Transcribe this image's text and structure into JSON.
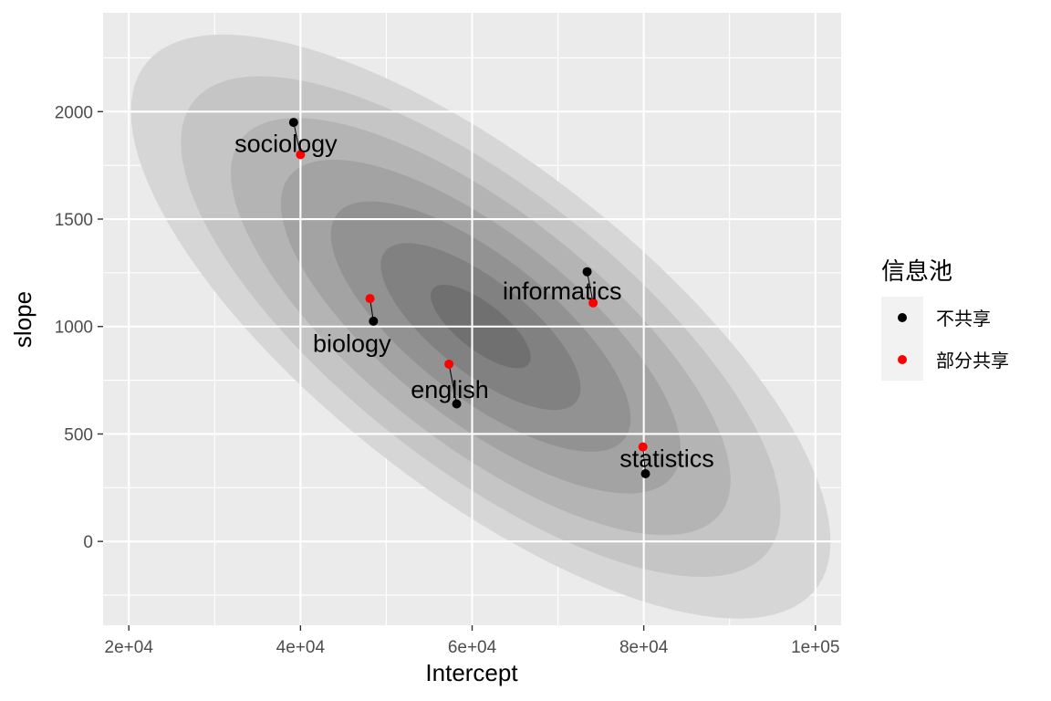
{
  "chart_data": {
    "type": "scatter",
    "title": "",
    "xlabel": "Intercept",
    "ylabel": "slope",
    "xlim": [
      17000,
      103000
    ],
    "ylim": [
      -390,
      2460
    ],
    "x_ticks": [
      20000,
      40000,
      60000,
      80000,
      100000
    ],
    "x_tick_labels": [
      "2e+04",
      "4e+04",
      "6e+04",
      "8e+04",
      "1e+05"
    ],
    "y_ticks": [
      0,
      500,
      1000,
      1500,
      2000
    ],
    "y_tick_labels": [
      "0",
      "500",
      "1000",
      "1500",
      "2000"
    ],
    "grid": true,
    "legend_position": "right",
    "legend_title": "信息池",
    "series": [
      {
        "name": "不共享",
        "color": "#000000",
        "points": [
          {
            "label": "sociology",
            "x": 39200,
            "y": 1950
          },
          {
            "label": "biology",
            "x": 48500,
            "y": 1025
          },
          {
            "label": "english",
            "x": 58200,
            "y": 640
          },
          {
            "label": "informatics",
            "x": 73400,
            "y": 1255
          },
          {
            "label": "statistics",
            "x": 80200,
            "y": 315
          }
        ]
      },
      {
        "name": "部分共享",
        "color": "#ff0000",
        "points": [
          {
            "label": "sociology",
            "x": 40000,
            "y": 1800
          },
          {
            "label": "biology",
            "x": 48100,
            "y": 1130
          },
          {
            "label": "english",
            "x": 57300,
            "y": 825
          },
          {
            "label": "informatics",
            "x": 74100,
            "y": 1110
          },
          {
            "label": "statistics",
            "x": 79900,
            "y": 440
          }
        ]
      }
    ],
    "point_labels": [
      {
        "text": "sociology",
        "x": 38300,
        "y": 1850
      },
      {
        "text": "biology",
        "x": 46000,
        "y": 920
      },
      {
        "text": "english",
        "x": 57400,
        "y": 705
      },
      {
        "text": "informatics",
        "x": 70500,
        "y": 1165
      },
      {
        "text": "statistics",
        "x": 82700,
        "y": 385
      }
    ],
    "density_contours": {
      "center": [
        61000,
        1000
      ],
      "levels": [
        1,
        2,
        3,
        4,
        5,
        6,
        7
      ]
    }
  }
}
